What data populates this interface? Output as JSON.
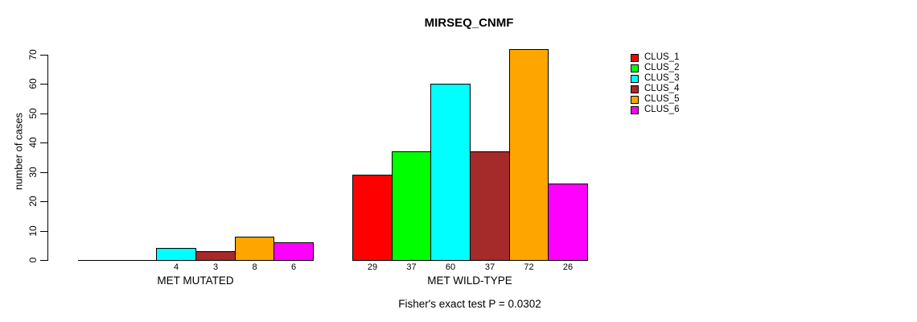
{
  "chart_data": {
    "type": "bar",
    "title": "MIRSEQ_CNMF",
    "ylabel": "number of cases",
    "groups": [
      "MET MUTATED",
      "MET WILD-TYPE"
    ],
    "series": [
      {
        "name": "CLUS_1",
        "color": "#ff0000",
        "values": [
          0,
          29
        ]
      },
      {
        "name": "CLUS_2",
        "color": "#00ff00",
        "values": [
          0,
          37
        ]
      },
      {
        "name": "CLUS_3",
        "color": "#00ffff",
        "values": [
          4,
          60
        ]
      },
      {
        "name": "CLUS_4",
        "color": "#a52a2a",
        "values": [
          3,
          37
        ]
      },
      {
        "name": "CLUS_5",
        "color": "#ffa500",
        "values": [
          8,
          72
        ]
      },
      {
        "name": "CLUS_6",
        "color": "#ff00ff",
        "values": [
          6,
          26
        ]
      }
    ],
    "yticks": [
      0,
      10,
      20,
      30,
      40,
      50,
      60,
      70
    ],
    "ylim": [
      0,
      70
    ],
    "grid": false,
    "bar_value_labels_shown": true,
    "zero_value_labels_hidden": true,
    "legend_position": "right",
    "annotation": "Fisher's exact test P = 0.0302",
    "axis_color": "#000000",
    "bar_border_color": "#000000",
    "background_color": "#ffffff"
  }
}
